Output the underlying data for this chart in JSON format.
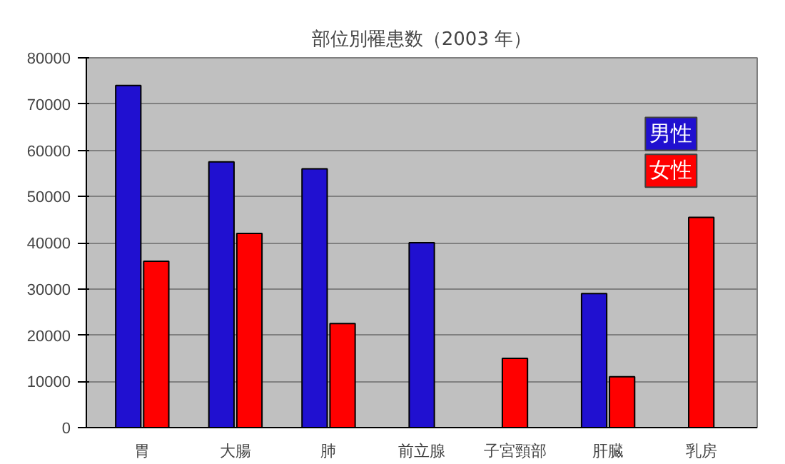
{
  "chart_data": {
    "type": "bar",
    "title": "部位別罹患数（2003 年）",
    "categories": [
      "胃",
      "大腸",
      "肺",
      "前立腺",
      "子宮頸部",
      "肝臓",
      "乳房"
    ],
    "series": [
      {
        "name": "男性",
        "color": "#2010d0",
        "values": [
          74000,
          57500,
          56000,
          40000,
          null,
          29000,
          null
        ]
      },
      {
        "name": "女性",
        "color": "#ff0000",
        "values": [
          36000,
          42000,
          22500,
          null,
          15000,
          11000,
          45500
        ]
      }
    ],
    "ylim": [
      0,
      80000
    ],
    "yticks": [
      0,
      10000,
      20000,
      30000,
      40000,
      50000,
      60000,
      70000,
      80000
    ],
    "grid": "y",
    "legend": "top right"
  }
}
